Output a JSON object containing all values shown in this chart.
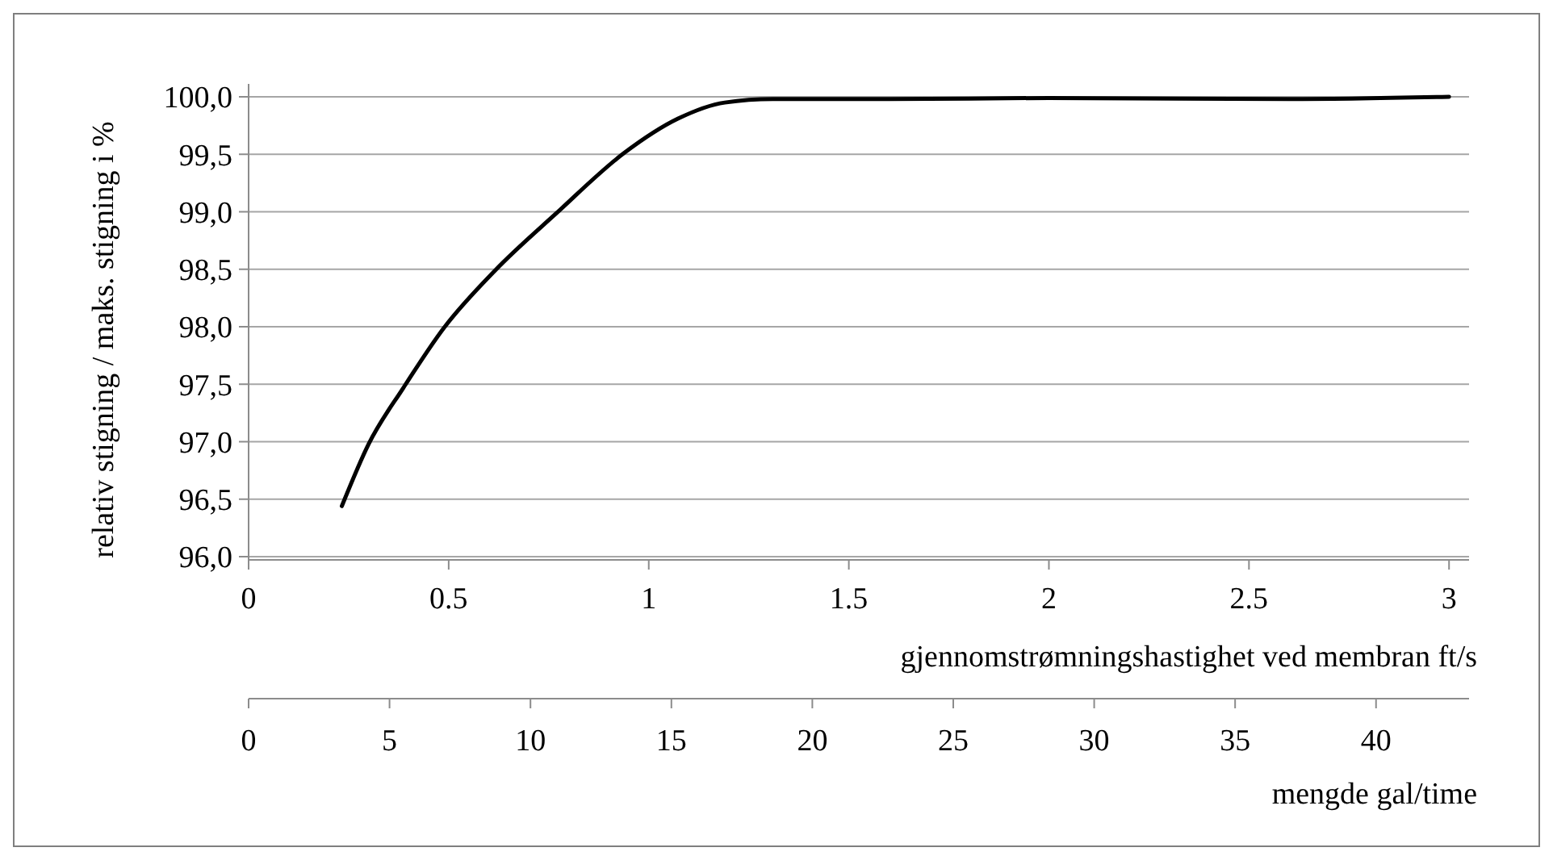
{
  "chart_data": {
    "type": "line",
    "ylabel": "relativ stigning / maks. stigning i %",
    "xlabel": "gjennomstrømningshastighet ved membran ft/s",
    "x2label": "mengde gal/time",
    "xlim": [
      0,
      3.05
    ],
    "xticks": [
      0,
      0.5,
      1,
      1.5,
      2,
      2.5,
      3
    ],
    "x2lim": [
      0,
      43.3
    ],
    "x2ticks": [
      0,
      5,
      10,
      15,
      20,
      25,
      30,
      35,
      40
    ],
    "ylim": [
      96,
      100
    ],
    "yticks": [
      {
        "value": 96,
        "label": "96,0"
      },
      {
        "value": 96.5,
        "label": "96,5"
      },
      {
        "value": 97,
        "label": "97,0"
      },
      {
        "value": 97.5,
        "label": "97,5"
      },
      {
        "value": 98,
        "label": "98,0"
      },
      {
        "value": 98.5,
        "label": "98,5"
      },
      {
        "value": 99,
        "label": "99,0"
      },
      {
        "value": 99.5,
        "label": "99,5"
      },
      {
        "value": 100,
        "label": "100,0"
      }
    ],
    "grid": "y",
    "marker": "none",
    "line_style": "solid",
    "series": [
      {
        "color": "#000000",
        "x": [
          0.233,
          0.3,
          0.387,
          0.488,
          0.616,
          0.77,
          0.938,
          1.073,
          1.19,
          1.31,
          1.6,
          2.0,
          2.6,
          3.0
        ],
        "values": [
          96.44,
          96.98,
          97.47,
          97.99,
          98.49,
          98.99,
          99.51,
          99.81,
          99.95,
          99.98,
          99.98,
          99.99,
          99.98,
          100.0
        ]
      }
    ]
  }
}
